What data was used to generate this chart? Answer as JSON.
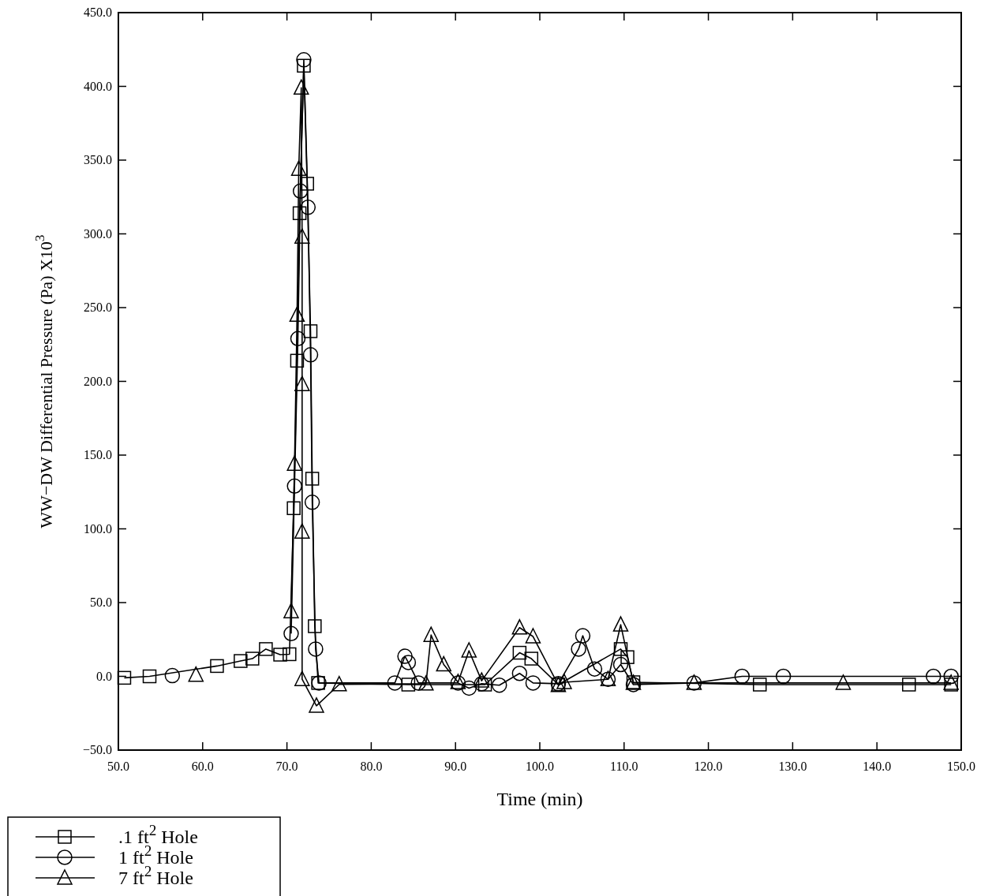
{
  "chart_data": {
    "type": "line",
    "xlabel": "Time (min)",
    "ylabel": "WW−DW Differential Pressure (Pa) X10$^{3}$",
    "xlim": [
      50,
      150
    ],
    "ylim": [
      -50,
      450
    ],
    "xticks": [
      {
        "value": 50,
        "label": "50.0"
      },
      {
        "value": 60,
        "label": "60.0"
      },
      {
        "value": 70,
        "label": "70.0"
      },
      {
        "value": 80,
        "label": "80.0"
      },
      {
        "value": 90,
        "label": "90.0"
      },
      {
        "value": 100,
        "label": "100.0"
      },
      {
        "value": 110,
        "label": "110.0"
      },
      {
        "value": 120,
        "label": "120.0"
      },
      {
        "value": 130,
        "label": "130.0"
      },
      {
        "value": 140,
        "label": "140.0"
      },
      {
        "value": 150,
        "label": "150.0"
      }
    ],
    "yticks": [
      {
        "value": -50,
        "label": "−50.0"
      },
      {
        "value": 0,
        "label": "0.0"
      },
      {
        "value": 50,
        "label": "50.0"
      },
      {
        "value": 100,
        "label": "100.0"
      },
      {
        "value": 150,
        "label": "150.0"
      },
      {
        "value": 200,
        "label": "200.0"
      },
      {
        "value": 250,
        "label": "250.0"
      },
      {
        "value": 300,
        "label": "300.0"
      },
      {
        "value": 350,
        "label": "350.0"
      },
      {
        "value": 400,
        "label": "400.0"
      },
      {
        "value": 450,
        "label": "450.0"
      }
    ],
    "grid": false,
    "legend": "bottom left",
    "line_style": "solid",
    "series": [
      {
        "name": ".1 ft$^{2}$ Hole",
        "color": "#000000",
        "marker": "square",
        "x": [
          50.7,
          53.7,
          61.7,
          64.5,
          65.9,
          67.5,
          69.2,
          70.3,
          70.8,
          71.2,
          71.5,
          72.0,
          72.4,
          72.8,
          73.0,
          73.3,
          73.7,
          84.4,
          93.5,
          97.6,
          99.0,
          102.2,
          109.6,
          110.4,
          111.1,
          126.1,
          143.8,
          148.8
        ],
        "values": [
          -1,
          0,
          7,
          10.4,
          12,
          18.5,
          14.7,
          15,
          114,
          214,
          314,
          414,
          334,
          234,
          134,
          34,
          -4.5,
          -5.6,
          -5.6,
          16,
          12,
          -5.6,
          18.5,
          13,
          -4,
          -5.6,
          -5.6,
          -5.6
        ]
      },
      {
        "name": "1 ft$^{2}$ Hole",
        "color": "#000000",
        "marker": "circle",
        "x": [
          56.4,
          63,
          70.5,
          70.9,
          71.3,
          71.6,
          72.0,
          72.5,
          72.8,
          73.0,
          73.4,
          73.8,
          82.8,
          84.0,
          84.4,
          85.6,
          90.3,
          91.6,
          93.1,
          95.2,
          97.6,
          99.2,
          102.2,
          104.6,
          105.1,
          106.5,
          108.1,
          109.6,
          111.1,
          118.3,
          124.0,
          128.9,
          146.7,
          148.8
        ],
        "values": [
          0.5,
          null,
          29,
          129,
          229,
          329,
          418,
          318,
          218,
          118,
          18.5,
          -4.5,
          -4.5,
          13.6,
          9.4,
          -4.5,
          -4.5,
          -8,
          -5,
          -6,
          2,
          -4.5,
          -5,
          18.5,
          27.5,
          5,
          -2,
          8,
          -5.6,
          -4.5,
          0,
          0,
          0,
          0
        ]
      },
      {
        "name": "7 ft$^{2}$ Hole",
        "color": "#000000",
        "marker": "triangle",
        "x": [
          59.2,
          65,
          70.5,
          70.9,
          71.2,
          71.4,
          71.7,
          71.8,
          71.8,
          71.8,
          71.8,
          73.5,
          76.2,
          86.5,
          87.1,
          88.6,
          90.3,
          91.6,
          93.1,
          97.6,
          99.2,
          102.2,
          102.9,
          108.1,
          109.6,
          111.1,
          118.3,
          136.0,
          148.8
        ],
        "values": [
          1,
          null,
          44,
          144,
          245,
          344,
          399,
          298,
          198,
          98,
          -2,
          -20,
          -5.5,
          -5,
          28,
          8,
          -4,
          17.4,
          -3,
          33,
          27,
          -6,
          -4,
          -2,
          35,
          -4.5,
          -4.5,
          -4.5,
          -4.5
        ]
      }
    ]
  }
}
